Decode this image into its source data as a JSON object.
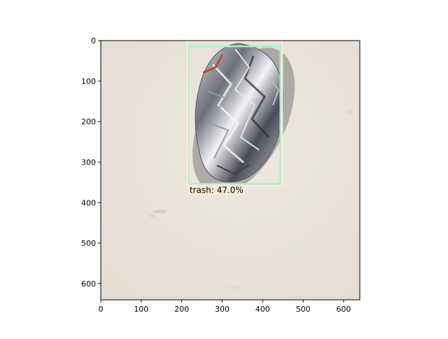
{
  "figure": {
    "x_ticks": [
      "0",
      "100",
      "200",
      "300",
      "400",
      "500",
      "600"
    ],
    "y_ticks": [
      "0",
      "100",
      "200",
      "300",
      "400",
      "500",
      "600"
    ]
  },
  "image": {
    "background_color": "#e8e2da",
    "object_icon": "crumpled-foil-wrapper"
  },
  "detections": [
    {
      "label_text": "trash: 47.0%",
      "class_name": "trash",
      "confidence": 47.0,
      "box_color": "#a8f0cc",
      "label_bg_color": "#fde9d9",
      "box": {
        "x_min": 216,
        "y_min": 14,
        "x_max": 444,
        "y_max": 354
      }
    },
    {
      "label_text": "",
      "class_name": "",
      "box_color": "#fde9d9",
      "box": {
        "x_min": 214,
        "y_min": 2,
        "x_max": 448,
        "y_max": 358
      }
    }
  ]
}
